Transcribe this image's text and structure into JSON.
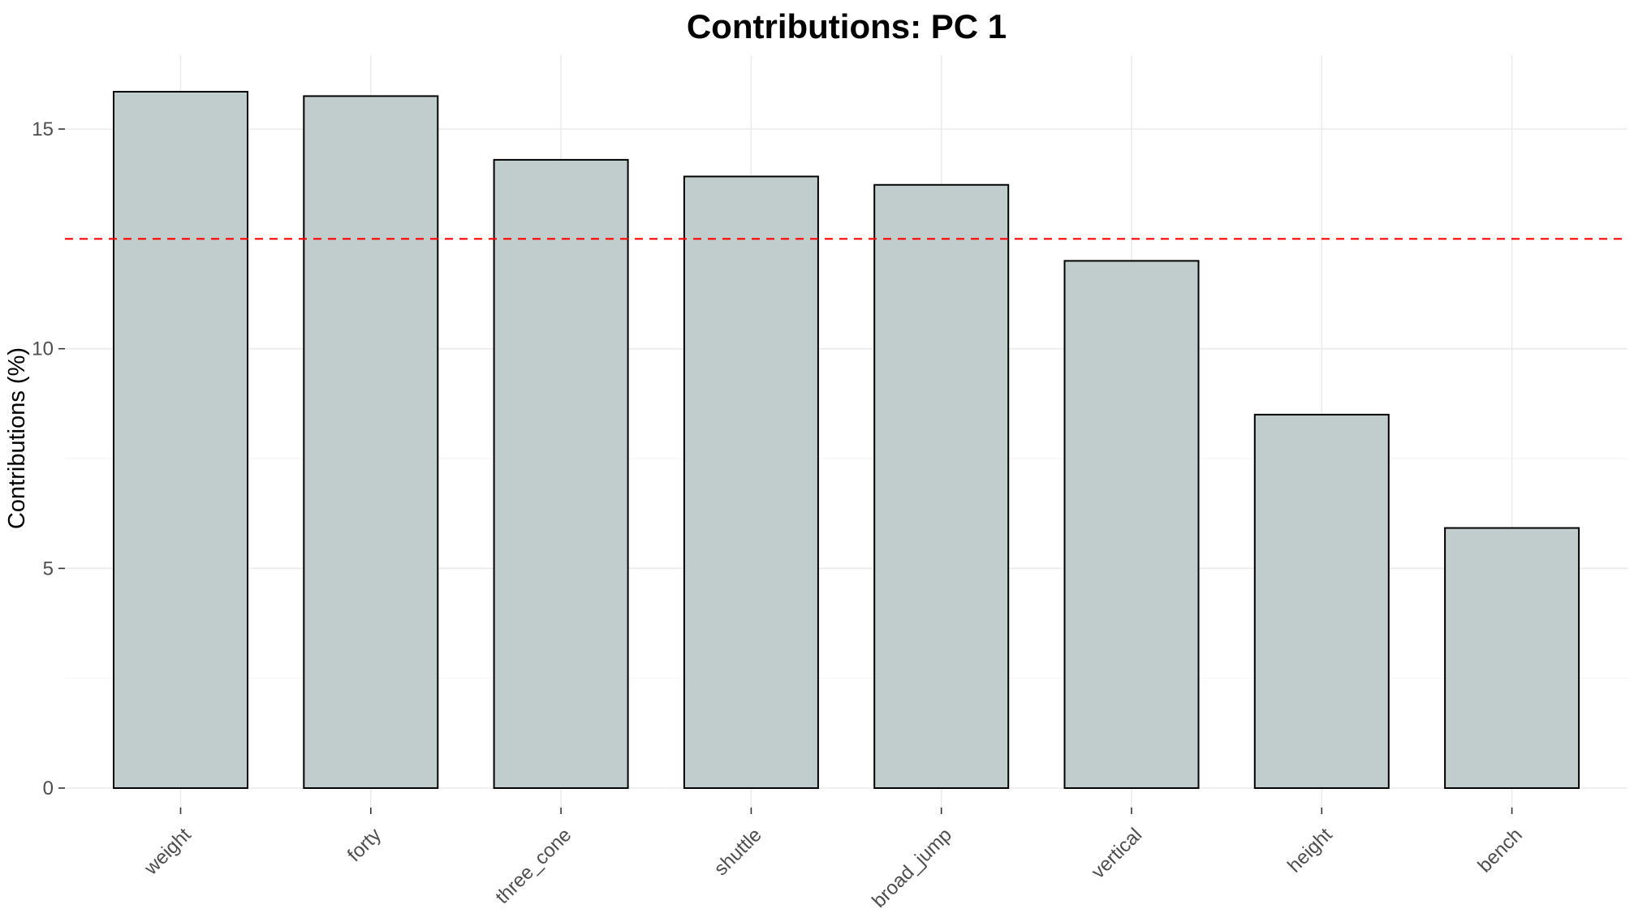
{
  "chart_data": {
    "type": "bar",
    "title": "Contributions: PC 1",
    "xlabel": "",
    "ylabel": "Contributions (%)",
    "categories": [
      "weight",
      "forty",
      "three_cone",
      "shuttle",
      "broad_jump",
      "vertical",
      "height",
      "bench"
    ],
    "values": [
      15.85,
      15.75,
      14.3,
      13.92,
      13.73,
      12.0,
      8.5,
      5.92
    ],
    "ylim": [
      0,
      16.7
    ],
    "yticks": [
      0,
      5,
      10,
      15
    ],
    "reference_line": {
      "y": 12.5,
      "style": "dashed",
      "color": "#ff0000"
    },
    "bar_fill": "#c1cdcd",
    "bar_outline": "#000000",
    "grid": true,
    "legend": "none"
  }
}
